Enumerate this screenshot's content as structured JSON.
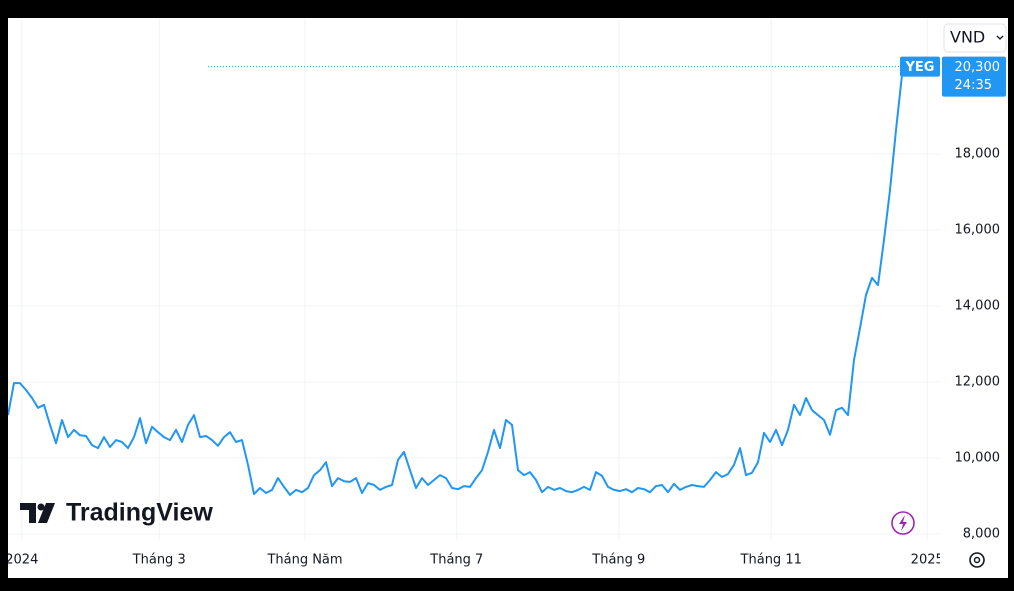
{
  "chart_data": {
    "type": "line",
    "currency": "VND",
    "watermark": "TradingView",
    "countdown": "24:35",
    "grid": true,
    "series": [
      {
        "name": "YEG",
        "color": "#2196f3",
        "values": [
          11130,
          11970,
          11970,
          11790,
          11580,
          11320,
          11400,
          10870,
          10390,
          11000,
          10550,
          10740,
          10600,
          10580,
          10340,
          10260,
          10550,
          10290,
          10470,
          10420,
          10260,
          10550,
          11050,
          10390,
          10820,
          10680,
          10550,
          10470,
          10740,
          10420,
          10870,
          11130,
          10550,
          10580,
          10470,
          10320,
          10550,
          10680,
          10420,
          10470,
          9820,
          9050,
          9210,
          9080,
          9160,
          9470,
          9240,
          9030,
          9160,
          9100,
          9210,
          9550,
          9680,
          9890,
          9260,
          9470,
          9390,
          9370,
          9470,
          9080,
          9340,
          9290,
          9160,
          9240,
          9290,
          9950,
          10160,
          9680,
          9210,
          9470,
          9290,
          9420,
          9550,
          9470,
          9210,
          9180,
          9260,
          9240,
          9470,
          9680,
          10160,
          10740,
          10260,
          11000,
          10870,
          9680,
          9550,
          9630,
          9420,
          9100,
          9240,
          9160,
          9210,
          9130,
          9100,
          9160,
          9240,
          9160,
          9630,
          9530,
          9240,
          9160,
          9130,
          9180,
          9100,
          9210,
          9180,
          9100,
          9260,
          9290,
          9100,
          9320,
          9160,
          9240,
          9290,
          9260,
          9240,
          9420,
          9630,
          9500,
          9580,
          9820,
          10260,
          9550,
          9610,
          9890,
          10660,
          10420,
          10740,
          10340,
          10740,
          11400,
          11130,
          11580,
          11260,
          11130,
          11000,
          10610,
          11260,
          11320,
          11130,
          12580,
          13420,
          14290,
          14740,
          14550,
          15740,
          17050,
          18630,
          20080,
          20260,
          20300,
          20300,
          20300,
          20300,
          20300
        ]
      }
    ],
    "last_price": {
      "value": 20300,
      "label": "20,300"
    },
    "xlim": [
      0,
      155.33
    ],
    "xticks": [
      {
        "value": 2.3,
        "label": "2024"
      },
      {
        "value": 25.2,
        "label": "Tháng 3"
      },
      {
        "value": 49.5,
        "label": "Tháng Năm"
      },
      {
        "value": 74.8,
        "label": "Tháng 7"
      },
      {
        "value": 101.8,
        "label": "Tháng 9"
      },
      {
        "value": 127.2,
        "label": "Tháng 11"
      },
      {
        "value": 153.2,
        "label": "2025"
      }
    ],
    "ylim": [
      7842,
      21580
    ],
    "yticks": [
      {
        "value": 8000,
        "label": "8,000"
      },
      {
        "value": 10000,
        "label": "10,000"
      },
      {
        "value": 12000,
        "label": "12,000"
      },
      {
        "value": 14000,
        "label": "14,000"
      },
      {
        "value": 16000,
        "label": "16,000"
      },
      {
        "value": 18000,
        "label": "18,000"
      }
    ]
  }
}
